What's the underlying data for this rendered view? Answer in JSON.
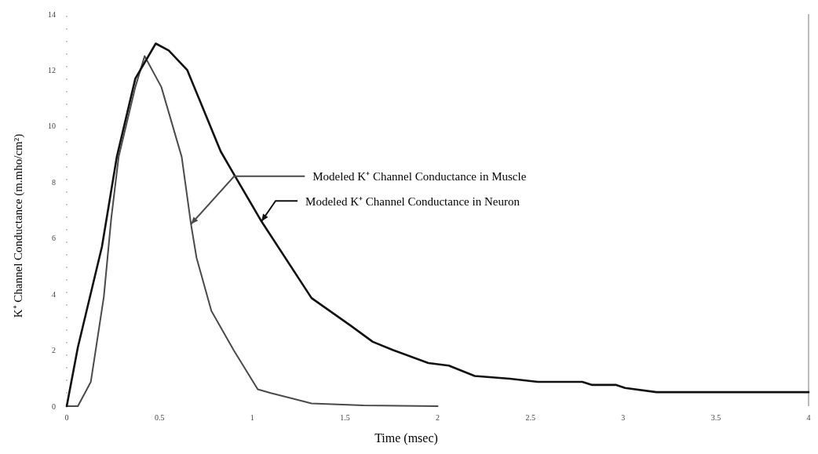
{
  "chart_data": {
    "type": "line",
    "xlabel": "Time (msec)",
    "ylabel": "K⁺ Channel Conductance (m.mho/cm²)",
    "xlim": [
      0,
      4
    ],
    "xticks": [
      0,
      0.5,
      1,
      1.5,
      2,
      2.5,
      3,
      3.5,
      4
    ],
    "ylim": [
      0,
      14
    ],
    "yticks": [
      0,
      2,
      4,
      6,
      8,
      10,
      12,
      14
    ],
    "grid": false,
    "marker": "none",
    "line_style": "solid",
    "series": [
      {
        "color": "#4a4a4a",
        "x": [
          0,
          0.06,
          0.13,
          0.2,
          0.24,
          0.28,
          0.37,
          0.42,
          0.51,
          0.62,
          0.67,
          0.7,
          0.78,
          0.9,
          1.03,
          1.1,
          1.32,
          1.6,
          2
        ],
        "values": [
          0,
          0,
          0.87,
          3.9,
          6.7,
          8.9,
          11.4,
          12.5,
          11.4,
          8.9,
          6.5,
          5.3,
          3.4,
          2,
          0.6,
          0.47,
          0.1,
          0.03,
          0
        ]
      },
      {
        "color": "#111111",
        "x": [
          0,
          0.06,
          0.19,
          0.27,
          0.37,
          0.48,
          0.55,
          0.65,
          0.83,
          0.9,
          1.05,
          1.32,
          1.53,
          1.65,
          1.76,
          1.95,
          2.06,
          2.2,
          2.39,
          2.54,
          2.78,
          2.83,
          2.96,
          3.01,
          3.18,
          4
        ],
        "values": [
          0,
          2.1,
          5.7,
          8.9,
          11.7,
          12.95,
          12.7,
          12,
          9.1,
          8.3,
          6.6,
          3.86,
          2.88,
          2.3,
          2,
          1.54,
          1.45,
          1.08,
          0.98,
          0.87,
          0.87,
          0.76,
          0.76,
          0.65,
          0.5,
          0.5
        ]
      }
    ],
    "annotations": [
      {
        "text": "Modeled K⁺ Channel Conductance in Muscle",
        "x": 0.67,
        "y": 6.5
      },
      {
        "text": "Modeled K⁺ Channel Conductance in Neuron",
        "x": 1.05,
        "y": 6.6
      }
    ]
  }
}
